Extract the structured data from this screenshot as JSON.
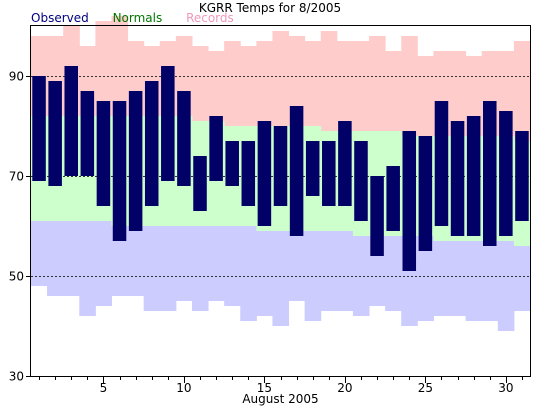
{
  "chart_data": {
    "type": "bar",
    "title": "KGRR Temps for 8/2005",
    "xlabel": "August 2005",
    "ylabel": "",
    "xlim": [
      0.5,
      31.5
    ],
    "ylim": [
      30,
      100
    ],
    "yticks": [
      30,
      50,
      70,
      90
    ],
    "xticks": [
      5,
      10,
      15,
      20,
      25,
      30
    ],
    "grid_lines": [
      50,
      70,
      90
    ],
    "legend": [
      "Observed",
      "Normals",
      "Records"
    ],
    "colors": {
      "observed": "#000066",
      "normals": "#ccffcc",
      "records_high": "#ffcccc",
      "records_low": "#ccccff",
      "legend_observed": "#000080",
      "legend_normals": "#007700",
      "legend_records": "#ee99bb"
    },
    "days": [
      1,
      2,
      3,
      4,
      5,
      6,
      7,
      8,
      9,
      10,
      11,
      12,
      13,
      14,
      15,
      16,
      17,
      18,
      19,
      20,
      21,
      22,
      23,
      24,
      25,
      26,
      27,
      28,
      29,
      30,
      31
    ],
    "observed_high": [
      90,
      89,
      92,
      87,
      85,
      85,
      87,
      89,
      92,
      87,
      74,
      82,
      77,
      77,
      81,
      80,
      84,
      77,
      77,
      81,
      77,
      70,
      72,
      79,
      78,
      85,
      81,
      82,
      85,
      83,
      79
    ],
    "observed_low": [
      69,
      68,
      70,
      70,
      64,
      57,
      59,
      64,
      69,
      68,
      63,
      69,
      68,
      64,
      60,
      64,
      58,
      66,
      64,
      64,
      61,
      54,
      59,
      51,
      55,
      60,
      58,
      58,
      56,
      58,
      61
    ],
    "normal_high": [
      82,
      82,
      82,
      82,
      82,
      82,
      82,
      82,
      82,
      82,
      81,
      81,
      80,
      80,
      80,
      80,
      80,
      80,
      79,
      79,
      79,
      79,
      79,
      78,
      78,
      78,
      78,
      78,
      78,
      78,
      77
    ],
    "normal_low": [
      61,
      61,
      61,
      61,
      61,
      60,
      60,
      60,
      60,
      60,
      60,
      60,
      60,
      60,
      59,
      59,
      59,
      59,
      59,
      59,
      58,
      58,
      58,
      58,
      58,
      57,
      57,
      57,
      57,
      57,
      56
    ],
    "record_high": [
      98,
      98,
      100,
      96,
      101,
      102,
      97,
      96,
      97,
      98,
      96,
      95,
      97,
      96,
      97,
      99,
      98,
      97,
      99,
      97,
      97,
      98,
      95,
      98,
      94,
      95,
      95,
      94,
      95,
      95,
      97
    ],
    "record_low": [
      48,
      46,
      46,
      42,
      44,
      46,
      46,
      43,
      43,
      45,
      43,
      45,
      44,
      41,
      42,
      40,
      45,
      41,
      43,
      43,
      42,
      44,
      43,
      40,
      41,
      42,
      42,
      41,
      41,
      39,
      43
    ]
  }
}
